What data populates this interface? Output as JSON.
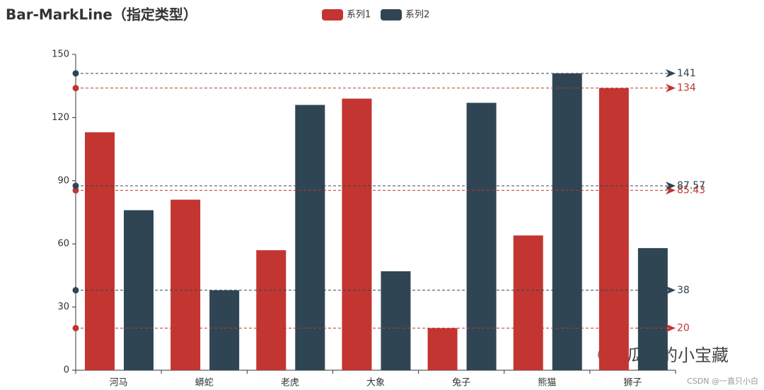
{
  "chart_data": {
    "type": "bar",
    "title": "Bar-MarkLine（指定类型）",
    "categories": [
      "河马",
      "蟒蛇",
      "老虎",
      "大象",
      "兔子",
      "熊猫",
      "狮子"
    ],
    "series": [
      {
        "name": "系列1",
        "color": "#c23531",
        "values": [
          113,
          81,
          57,
          129,
          20,
          64,
          134
        ],
        "mark_lines": [
          134,
          85.43,
          20
        ]
      },
      {
        "name": "系列2",
        "color": "#2f4554",
        "values": [
          76,
          38,
          126,
          47,
          127,
          141,
          58
        ],
        "mark_lines": [
          141,
          87.57,
          38
        ]
      }
    ],
    "ylim": [
      0,
      150
    ],
    "yticks": [
      0,
      30,
      60,
      90,
      120,
      150
    ],
    "watermark": "瓜瓜的小宝藏",
    "credit": "CSDN @一直只小白"
  }
}
